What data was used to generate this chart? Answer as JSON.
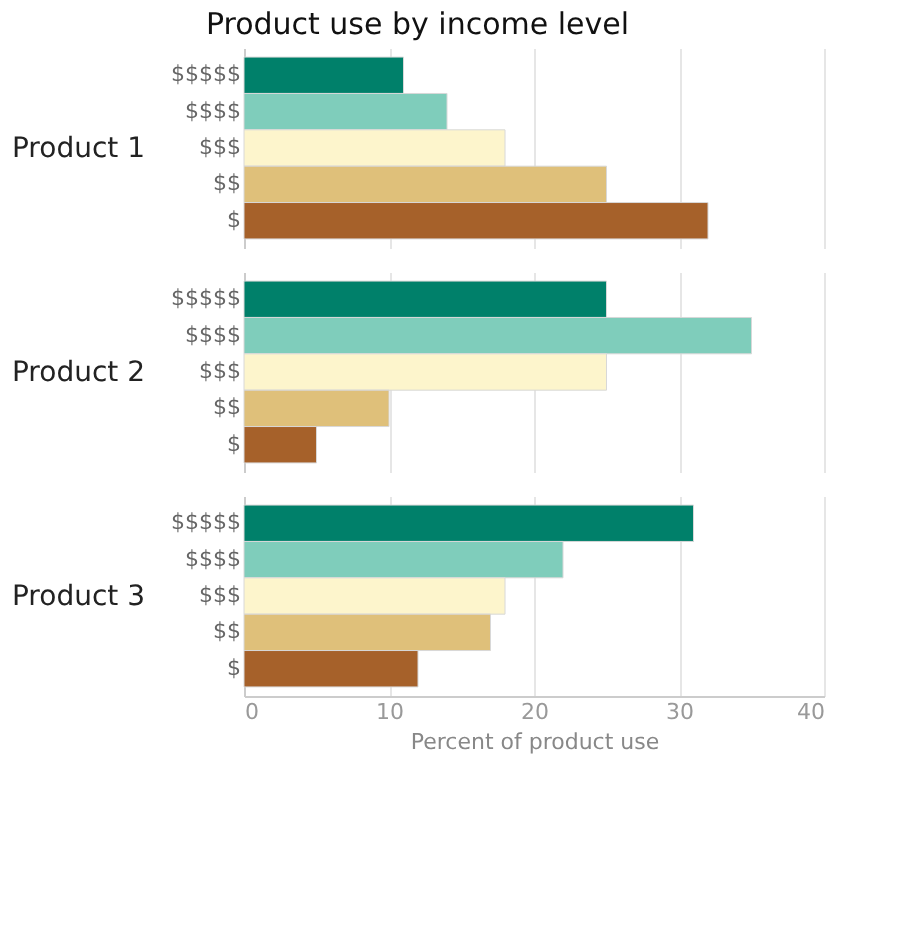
{
  "chart_data": {
    "type": "bar",
    "orientation": "horizontal",
    "title": "Product use by income level",
    "xlabel": "Percent of product use",
    "categories": [
      "Product 1",
      "Product 2",
      "Product 3"
    ],
    "series": [
      {
        "name": "$$$$$",
        "color": "#00806a",
        "values": [
          11,
          25,
          31
        ]
      },
      {
        "name": "$$$$",
        "color": "#7fcdbb",
        "values": [
          14,
          35,
          22
        ]
      },
      {
        "name": "$$$",
        "color": "#fdf5cc",
        "values": [
          18,
          25,
          18
        ]
      },
      {
        "name": "$$",
        "color": "#dfc07a",
        "values": [
          25,
          10,
          17
        ]
      },
      {
        "name": "$",
        "color": "#a6612a",
        "values": [
          32,
          5,
          12
        ]
      }
    ],
    "xlim": [
      0,
      40
    ],
    "xticks": [
      0,
      10,
      20,
      30,
      40
    ],
    "grid": "x",
    "legend": false
  }
}
